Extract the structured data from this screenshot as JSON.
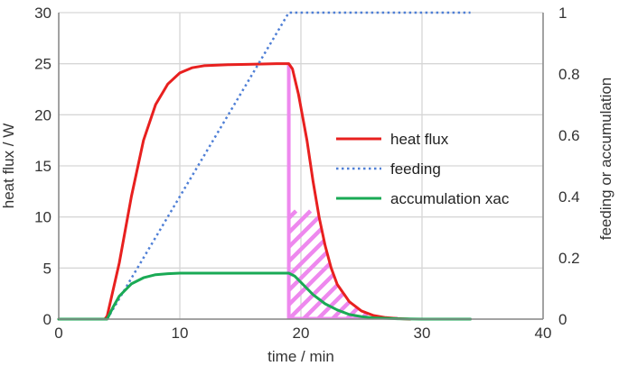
{
  "chart_data": {
    "type": "line",
    "xlabel": "time / min",
    "ylabel": "heat flux / W",
    "y2label": "feeding or accumulation",
    "xlim": [
      0,
      40
    ],
    "ylim": [
      0,
      30
    ],
    "y2lim": [
      0,
      1
    ],
    "x_ticks": [
      "0",
      "10",
      "20",
      "30",
      "40"
    ],
    "y_ticks": [
      "0",
      "5",
      "10",
      "15",
      "20",
      "25",
      "30"
    ],
    "y2_ticks": [
      "0",
      "0.2",
      "0.4",
      "0.6",
      "0.8",
      "1"
    ],
    "grid": true,
    "legend_position": "right-center",
    "series": [
      {
        "name": "heat flux",
        "axis": "left",
        "style": "solid",
        "color": "#e8201f",
        "points": [
          [
            0,
            0
          ],
          [
            3.8,
            0
          ],
          [
            4,
            0.3
          ],
          [
            5,
            5.5
          ],
          [
            6,
            12
          ],
          [
            7,
            17.5
          ],
          [
            8,
            21
          ],
          [
            9,
            23
          ],
          [
            10,
            24.1
          ],
          [
            11,
            24.6
          ],
          [
            12,
            24.8
          ],
          [
            14,
            24.9
          ],
          [
            16,
            24.95
          ],
          [
            18,
            25
          ],
          [
            19,
            25
          ],
          [
            19.3,
            24.5
          ],
          [
            19.8,
            22
          ],
          [
            20.5,
            17.5
          ],
          [
            21,
            13.5
          ],
          [
            21.5,
            10
          ],
          [
            22,
            7.2
          ],
          [
            22.5,
            5
          ],
          [
            23,
            3.4
          ],
          [
            24,
            1.7
          ],
          [
            25,
            0.8
          ],
          [
            26,
            0.35
          ],
          [
            27,
            0.15
          ],
          [
            28,
            0.05
          ],
          [
            29,
            0
          ]
        ]
      },
      {
        "name": "feeding",
        "axis": "right",
        "style": "dotted",
        "color": "#4f7fd6",
        "points": [
          [
            4,
            0
          ],
          [
            19,
            1
          ],
          [
            34,
            1
          ]
        ]
      },
      {
        "name": "accumulation xac",
        "axis": "right",
        "style": "solid",
        "color": "#1aaa55",
        "points": [
          [
            0,
            0
          ],
          [
            4,
            0
          ],
          [
            4.5,
            0.04
          ],
          [
            5,
            0.075
          ],
          [
            6,
            0.115
          ],
          [
            7,
            0.135
          ],
          [
            8,
            0.145
          ],
          [
            9,
            0.148
          ],
          [
            10,
            0.15
          ],
          [
            12,
            0.15
          ],
          [
            14,
            0.15
          ],
          [
            16,
            0.15
          ],
          [
            18,
            0.15
          ],
          [
            19,
            0.15
          ],
          [
            19.5,
            0.14
          ],
          [
            20,
            0.12
          ],
          [
            21,
            0.08
          ],
          [
            22,
            0.05
          ],
          [
            23,
            0.03
          ],
          [
            24,
            0.015
          ],
          [
            25,
            0.008
          ],
          [
            26,
            0.004
          ],
          [
            28,
            0.001
          ],
          [
            30,
            0
          ],
          [
            34,
            0
          ]
        ]
      }
    ],
    "shaded_region": {
      "color": "#ee88ee",
      "x_start": 19,
      "under_series": "heat flux"
    }
  }
}
